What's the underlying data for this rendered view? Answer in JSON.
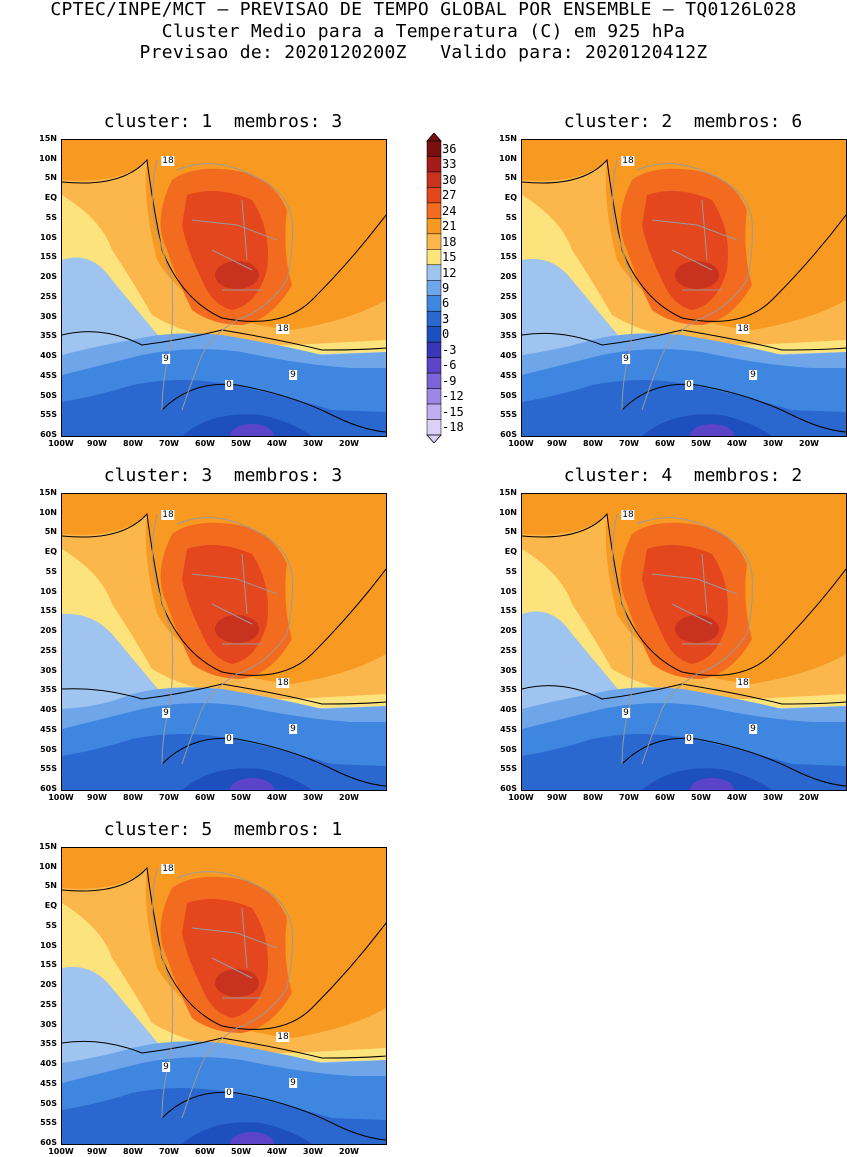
{
  "header": {
    "line1": "CPTEC/INPE/MCT – PREVISAO DE TEMPO GLOBAL POR ENSEMBLE – TQ0126L028",
    "line2": "Cluster Medio para a Temperatura (C) em 925 hPa",
    "line3": "Previsao de: 2020120200Z   Valido para: 2020120412Z"
  },
  "panels": [
    {
      "title": "cluster: 1  membros: 3"
    },
    {
      "title": "cluster: 2  membros: 6"
    },
    {
      "title": "cluster: 3  membros: 3"
    },
    {
      "title": "cluster: 4  membros: 2"
    },
    {
      "title": "cluster: 5  membros: 1"
    }
  ],
  "lat_labels": [
    "15N",
    "10N",
    "5N",
    "EQ",
    "5S",
    "10S",
    "15S",
    "20S",
    "25S",
    "30S",
    "35S",
    "40S",
    "45S",
    "50S",
    "55S",
    "60S"
  ],
  "lon_labels": [
    "100W",
    "90W",
    "80W",
    "70W",
    "60W",
    "50W",
    "40W",
    "30W",
    "20W"
  ],
  "contour_labels": [
    "18",
    "9",
    "0"
  ],
  "colorbar": {
    "labels": [
      "36",
      "33",
      "30",
      "27",
      "24",
      "21",
      "18",
      "15",
      "12",
      "9",
      "6",
      "3",
      "0",
      "-3",
      "-6",
      "-9",
      "-12",
      "-15",
      "-18"
    ],
    "colors": [
      "#7a0f0f",
      "#a51a1a",
      "#c9321f",
      "#e4461e",
      "#f26b1f",
      "#f89a22",
      "#fbb74c",
      "#fde37c",
      "#9fc4ef",
      "#6fa6ea",
      "#3f86e0",
      "#2a68cf",
      "#1d4fbf",
      "#3a36b8",
      "#5b44c8",
      "#7d63d8",
      "#9e86e4",
      "#c1aef0",
      "#ddd0f8"
    ]
  }
}
